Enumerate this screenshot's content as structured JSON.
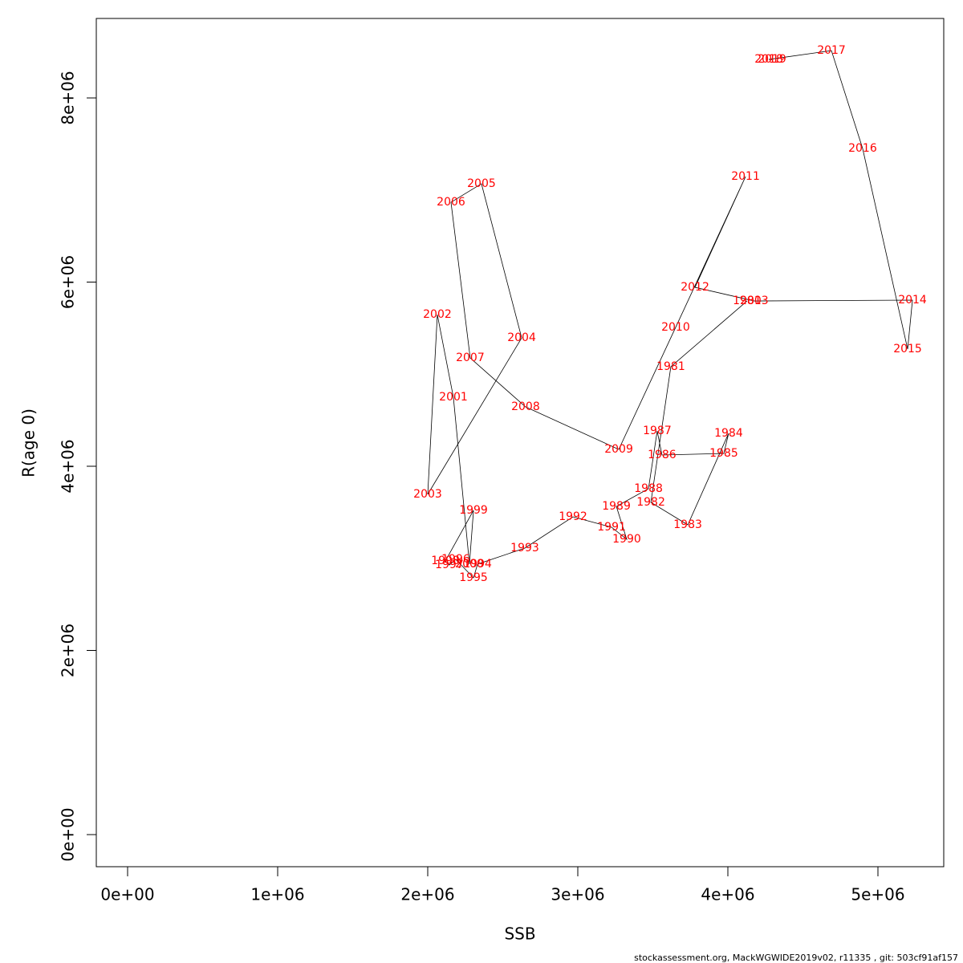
{
  "chart_data": {
    "type": "line",
    "x_label": "SSB",
    "y_label": "R(age 0)",
    "footer": "stockassessment.org, MackWGWIDE2019v02, r11335 , git: 503cf91af157",
    "point_labels": [
      "1980",
      "1981",
      "1982",
      "1983",
      "1984",
      "1985",
      "1986",
      "1987",
      "1988",
      "1989",
      "1990",
      "1991",
      "1992",
      "1993",
      "1994",
      "1995",
      "1996",
      "1997",
      "1998",
      "1999",
      "2000",
      "2001",
      "2002",
      "2003",
      "2004",
      "2005",
      "2006",
      "2007",
      "2008",
      "2009",
      "2010",
      "2011",
      "2012",
      "2013",
      "2014",
      "2015",
      "2016",
      "2017",
      "2018",
      "2019"
    ],
    "x": [
      4128000,
      3620000,
      3487000,
      3733000,
      4005000,
      3973000,
      3561000,
      3529000,
      3471000,
      3257000,
      3326000,
      3225000,
      2968000,
      2647000,
      2332000,
      2305000,
      2187000,
      2144000,
      2118000,
      2305000,
      2278000,
      2171000,
      2064000,
      2000000,
      2626000,
      2358000,
      2155000,
      2283000,
      2652000,
      3273000,
      3652000,
      4118000,
      3781000,
      4176000,
      5230000,
      5198000,
      4898000,
      4690000,
      4273000,
      4294000
    ],
    "values": [
      5795000,
      5081000,
      3608000,
      3364000,
      4357000,
      4139000,
      4122000,
      4383000,
      3756000,
      3564000,
      3207000,
      3338000,
      3451000,
      3111000,
      2937000,
      2789000,
      2989000,
      2928000,
      2972000,
      3521000,
      2937000,
      4749000,
      5647000,
      3695000,
      5394000,
      7068000,
      6867000,
      5176000,
      4645000,
      4183000,
      5508000,
      7146000,
      5943000,
      5795000,
      5804000,
      5272000,
      7451000,
      8514000,
      8418000,
      8418000
    ],
    "line_color": "#000000",
    "label_color": "#ff0000",
    "xlim": [
      -208556,
      5438500
    ],
    "ylim": [
      -348600,
      8863000
    ],
    "xticks": [
      {
        "value": 0,
        "label": "0e+00"
      },
      {
        "value": 1000000,
        "label": "1e+06"
      },
      {
        "value": 2000000,
        "label": "2e+06"
      },
      {
        "value": 3000000,
        "label": "3e+06"
      },
      {
        "value": 4000000,
        "label": "4e+06"
      },
      {
        "value": 5000000,
        "label": "5e+06"
      }
    ],
    "yticks": [
      {
        "value": 0,
        "label": "0e+00"
      },
      {
        "value": 2000000,
        "label": "2e+06"
      },
      {
        "value": 4000000,
        "label": "4e+06"
      },
      {
        "value": 6000000,
        "label": "6e+06"
      },
      {
        "value": 8000000,
        "label": "8e+06"
      }
    ]
  }
}
